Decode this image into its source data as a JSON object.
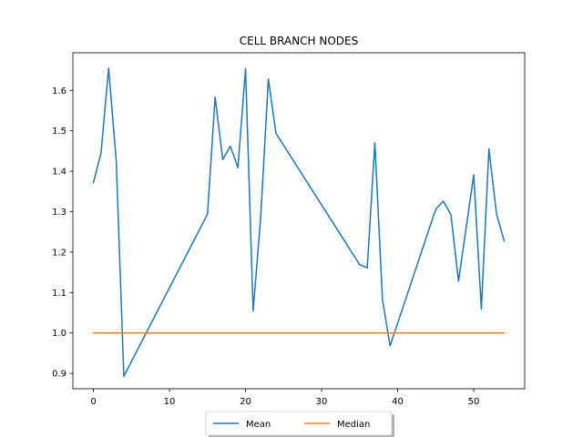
{
  "chart_data": {
    "type": "line",
    "title": "CELL BRANCH NODES",
    "xlabel": "",
    "ylabel": "",
    "xlim": [
      -2.7,
      56.7
    ],
    "ylim": [
      0.862,
      1.693
    ],
    "xticks": [
      0,
      10,
      20,
      30,
      40,
      50
    ],
    "yticks": [
      0.9,
      1.0,
      1.1,
      1.2,
      1.3,
      1.4,
      1.5,
      1.6
    ],
    "grid": false,
    "legend_position": "bottom-center",
    "series": [
      {
        "name": "Mean",
        "color": "#1f77b4",
        "x": [
          0,
          1,
          2,
          3,
          4,
          15,
          16,
          17,
          18,
          19,
          20,
          21,
          22,
          23,
          24,
          35,
          36,
          37,
          38,
          39,
          45,
          46,
          47,
          48,
          49,
          50,
          51,
          52,
          53,
          54
        ],
        "y": [
          1.372,
          1.445,
          1.655,
          1.425,
          0.893,
          1.294,
          1.583,
          1.429,
          1.462,
          1.409,
          1.654,
          1.054,
          1.289,
          1.628,
          1.494,
          1.169,
          1.161,
          1.47,
          1.083,
          0.968,
          1.306,
          1.326,
          1.293,
          1.128,
          1.26,
          1.391,
          1.059,
          1.455,
          1.294,
          1.228
        ]
      },
      {
        "name": "Median",
        "color": "#ff7f0e",
        "x": [
          0,
          54
        ],
        "y": [
          1.0,
          1.0
        ]
      }
    ]
  }
}
